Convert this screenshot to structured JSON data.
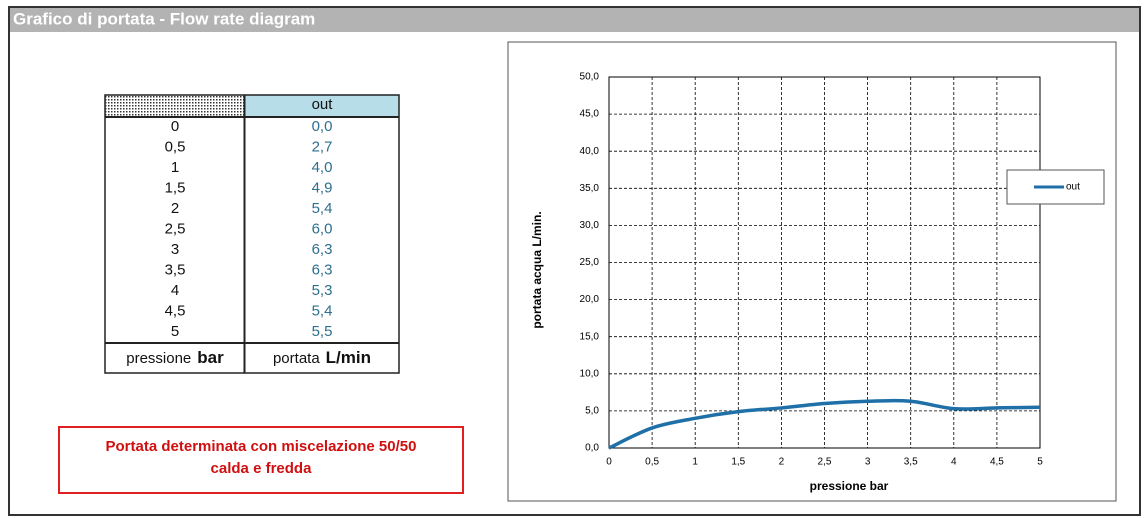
{
  "header": {
    "title": "Grafico di portata - Flow rate diagram"
  },
  "table": {
    "column_header": "out",
    "rows": [
      [
        "0",
        "0,0"
      ],
      [
        "0,5",
        "2,7"
      ],
      [
        "1",
        "4,0"
      ],
      [
        "1,5",
        "4,9"
      ],
      [
        "2",
        "5,4"
      ],
      [
        "2,5",
        "6,0"
      ],
      [
        "3",
        "6,3"
      ],
      [
        "3,5",
        "6,3"
      ],
      [
        "4",
        "5,3"
      ],
      [
        "4,5",
        "5,4"
      ],
      [
        "5",
        "5,5"
      ]
    ],
    "footer": [
      "pressione",
      "bar",
      "portata",
      "L/min"
    ]
  },
  "note": {
    "lines": [
      "Portata determinata con miscelazione 50/50",
      "calda e fredda"
    ]
  },
  "chart_data": {
    "type": "line",
    "x": [
      0,
      0.5,
      1,
      1.5,
      2,
      2.5,
      3,
      3.5,
      4,
      4.5,
      5
    ],
    "series": [
      {
        "name": "out",
        "color": "#1f6fa8",
        "values": [
          0,
          2.7,
          4.0,
          4.9,
          5.4,
          6.0,
          6.3,
          6.3,
          5.3,
          5.4,
          5.5
        ]
      }
    ],
    "xlabel": "pressione bar",
    "ylabel": "portata acqua  L/min.",
    "xlim": [
      0,
      5
    ],
    "xticks": [
      0,
      {
        "value": 0.5,
        "label": "0,5"
      },
      1,
      {
        "value": 1.5,
        "label": "1,5"
      },
      2,
      {
        "value": 2.5,
        "label": "2,5"
      },
      3,
      {
        "value": 3.5,
        "label": "3,5"
      },
      4,
      {
        "value": 4.5,
        "label": "4,5"
      },
      5
    ],
    "ylim": [
      0,
      50
    ],
    "yticks": [
      {
        "value": 0,
        "label": "0,0"
      },
      {
        "value": 5,
        "label": "5,0"
      },
      {
        "value": 10,
        "label": "10,0"
      },
      {
        "value": 15,
        "label": "15,0"
      },
      {
        "value": 20,
        "label": "20,0"
      },
      {
        "value": 25,
        "label": "25,0"
      },
      {
        "value": 30,
        "label": "30,0"
      },
      {
        "value": 35,
        "label": "35,0"
      },
      {
        "value": 40,
        "label": "40,0"
      },
      {
        "value": 45,
        "label": "45,0"
      },
      {
        "value": 50,
        "label": "50,0"
      }
    ],
    "grid": true,
    "legend": "right"
  }
}
